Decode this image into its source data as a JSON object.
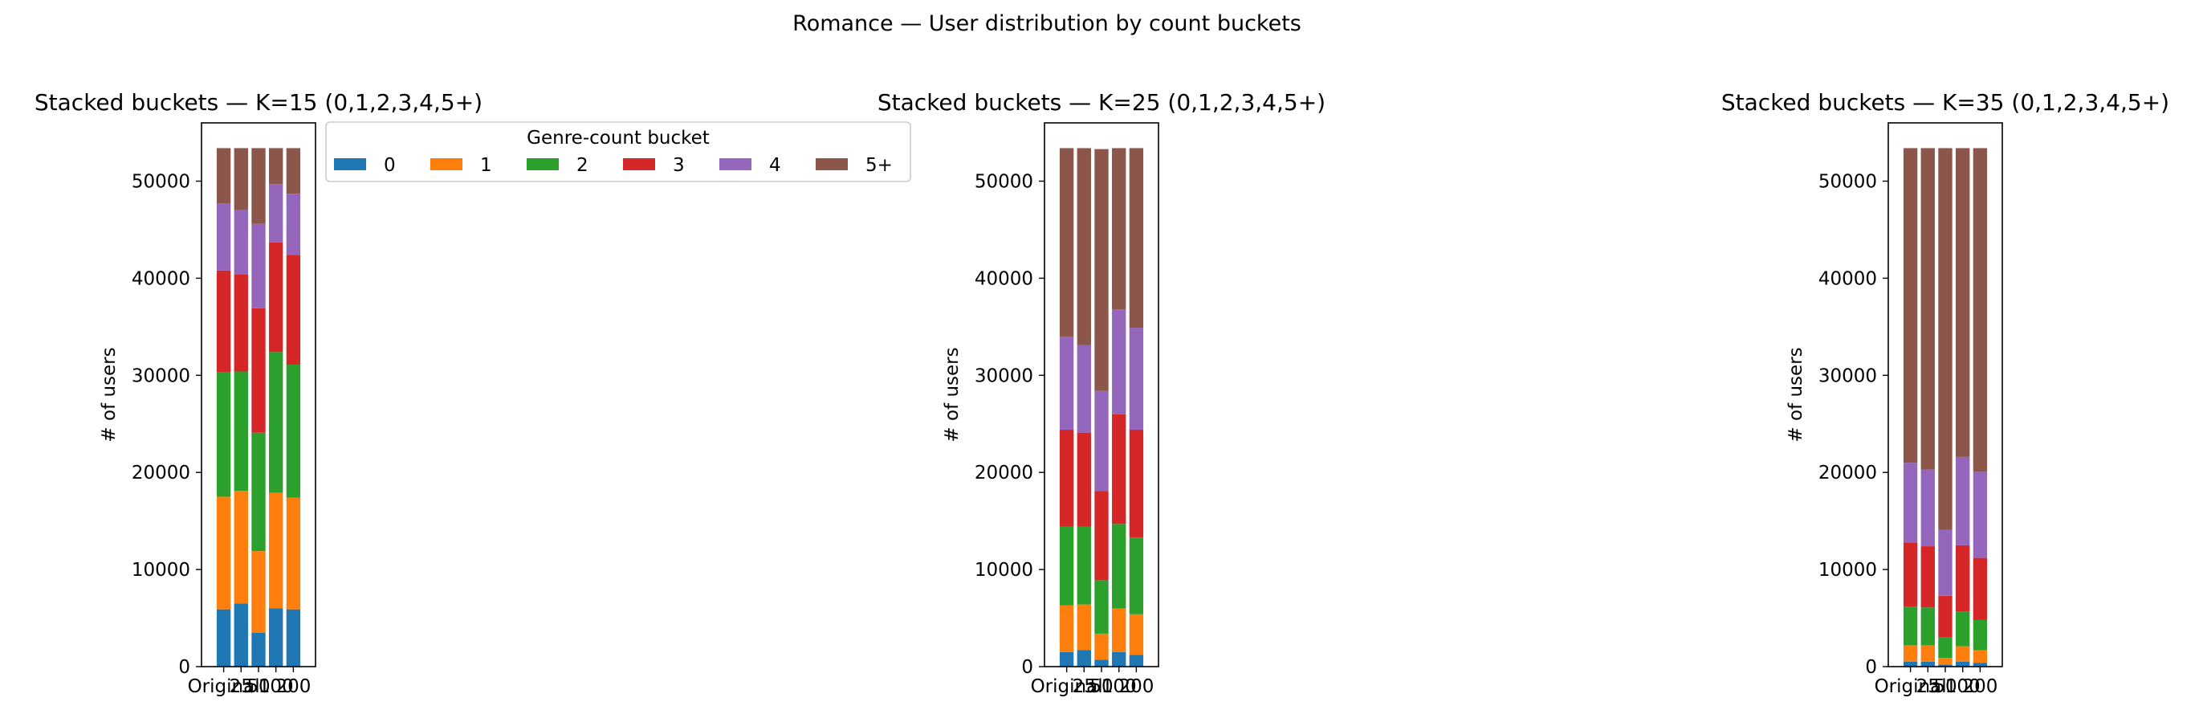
{
  "figure": {
    "suptitle": "Romance — User distribution by count buckets"
  },
  "legend": {
    "title": "Genre-count bucket",
    "entries": [
      "0",
      "1",
      "2",
      "3",
      "4",
      "5+"
    ]
  },
  "colors": {
    "0": "#1f77b4",
    "1": "#ff7f0e",
    "2": "#2ca02c",
    "3": "#d62728",
    "4": "#9467bd",
    "5+": "#8c564b"
  },
  "chart_data": [
    {
      "type": "bar",
      "stacked": true,
      "title": "Stacked buckets — K=15  (0,1,2,3,4,5+)",
      "ylabel": "# of users",
      "xlabel": "",
      "ylim": [
        0,
        56000
      ],
      "yticks": [
        0,
        10000,
        20000,
        30000,
        40000,
        50000
      ],
      "categories": [
        "Original",
        "25",
        "50",
        "100",
        "200"
      ],
      "series": [
        {
          "name": "0",
          "values": [
            5900,
            6500,
            3500,
            6000,
            5900
          ]
        },
        {
          "name": "1",
          "values": [
            11600,
            11600,
            8400,
            11900,
            11500
          ]
        },
        {
          "name": "2",
          "values": [
            12800,
            12300,
            12200,
            14500,
            13700
          ]
        },
        {
          "name": "3",
          "values": [
            10500,
            10000,
            12800,
            11300,
            11300
          ]
        },
        {
          "name": "4",
          "values": [
            6900,
            6600,
            8700,
            6000,
            6300
          ]
        },
        {
          "name": "5+",
          "values": [
            5700,
            6400,
            7800,
            3700,
            4700
          ]
        }
      ]
    },
    {
      "type": "bar",
      "stacked": true,
      "title": "Stacked buckets — K=25  (0,1,2,3,4,5+)",
      "ylabel": "# of users",
      "xlabel": "",
      "ylim": [
        0,
        56000
      ],
      "yticks": [
        0,
        10000,
        20000,
        30000,
        40000,
        50000
      ],
      "categories": [
        "Original",
        "25",
        "50",
        "100",
        "200"
      ],
      "series": [
        {
          "name": "0",
          "values": [
            1500,
            1700,
            700,
            1500,
            1200
          ]
        },
        {
          "name": "1",
          "values": [
            4800,
            4700,
            2700,
            4500,
            4200
          ]
        },
        {
          "name": "2",
          "values": [
            8100,
            8000,
            5500,
            8700,
            7900
          ]
        },
        {
          "name": "3",
          "values": [
            10000,
            9700,
            9200,
            11300,
            11100
          ]
        },
        {
          "name": "4",
          "values": [
            9600,
            9000,
            10300,
            10800,
            10500
          ]
        },
        {
          "name": "5+",
          "values": [
            19400,
            20300,
            24900,
            16600,
            18500
          ]
        }
      ]
    },
    {
      "type": "bar",
      "stacked": true,
      "title": "Stacked buckets — K=35  (0,1,2,3,4,5+)",
      "ylabel": "# of users",
      "xlabel": "",
      "ylim": [
        0,
        56000
      ],
      "yticks": [
        0,
        10000,
        20000,
        30000,
        40000,
        50000
      ],
      "categories": [
        "Original",
        "25",
        "50",
        "100",
        "200"
      ],
      "series": [
        {
          "name": "0",
          "values": [
            500,
            500,
            200,
            500,
            400
          ]
        },
        {
          "name": "1",
          "values": [
            1700,
            1700,
            700,
            1600,
            1300
          ]
        },
        {
          "name": "2",
          "values": [
            4000,
            3900,
            2100,
            3600,
            3100
          ]
        },
        {
          "name": "3",
          "values": [
            6600,
            6300,
            4300,
            6800,
            6400
          ]
        },
        {
          "name": "4",
          "values": [
            8200,
            7900,
            6800,
            9100,
            8900
          ]
        },
        {
          "name": "5+",
          "values": [
            32400,
            33100,
            39300,
            31800,
            33300
          ]
        }
      ]
    }
  ]
}
